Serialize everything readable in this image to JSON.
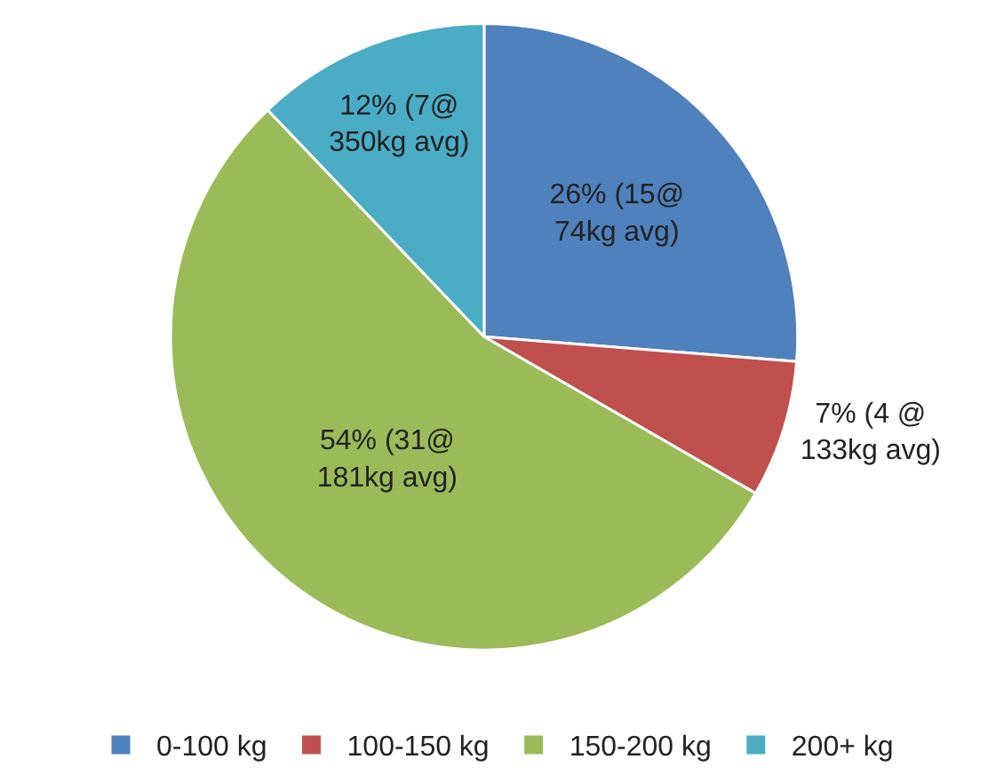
{
  "chart_data": {
    "type": "pie",
    "categories": [
      "0-100 kg",
      "100-150 kg",
      "150-200 kg",
      "200+ kg"
    ],
    "values": [
      26,
      7,
      54,
      12
    ],
    "colors": [
      "#4f81bd",
      "#c0504d",
      "#9bbb59",
      "#4bacc6"
    ],
    "value_labels": [
      "26% (15@\n74kg avg)",
      "7% (4 @\n133kg avg)",
      "54% (31@\n181kg avg)",
      "12% (7@\n350kg avg)"
    ],
    "legend": "bottom"
  }
}
